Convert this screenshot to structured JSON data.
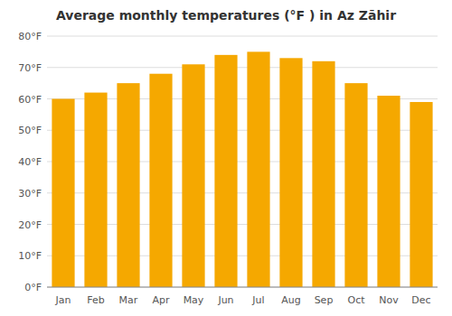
{
  "chart_data": {
    "type": "bar",
    "title": "Average monthly temperatures (°F ) in Az Zāhir",
    "categories": [
      "Jan",
      "Feb",
      "Mar",
      "Apr",
      "May",
      "Jun",
      "Jul",
      "Aug",
      "Sep",
      "Oct",
      "Nov",
      "Dec"
    ],
    "values": [
      60,
      62,
      65,
      68,
      71,
      74,
      75,
      73,
      72,
      65,
      61,
      59
    ],
    "color": "#F5A800",
    "ylim": [
      0,
      80
    ],
    "yticks": [
      {
        "value": 0,
        "label": "0°F"
      },
      {
        "value": 10,
        "label": "10°F"
      },
      {
        "value": 20,
        "label": "20°F"
      },
      {
        "value": 30,
        "label": "30°F"
      },
      {
        "value": 40,
        "label": "40°F"
      },
      {
        "value": 50,
        "label": "50°F"
      },
      {
        "value": 60,
        "label": "60°F"
      },
      {
        "value": 70,
        "label": "70°F"
      },
      {
        "value": 80,
        "label": "80°F"
      }
    ],
    "grid": true
  }
}
